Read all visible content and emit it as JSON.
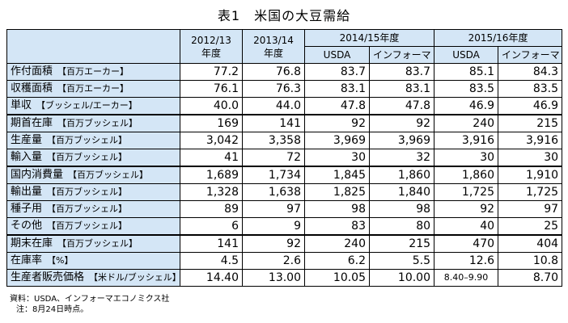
{
  "title": "表1　米国の大豆需給",
  "header": {
    "col_2012": "2012/13\n年度",
    "col_2013": "2013/14\n年度",
    "group_2014": "2014/15年度",
    "group_2015": "2015/16年度",
    "sub": [
      "USDA",
      "インフォーマ",
      "USDA",
      "インフォーマ"
    ]
  },
  "rows": [
    {
      "label": "作付面積",
      "unit": "【百万エーカー】",
      "values": [
        "77.2",
        "76.8",
        "83.7",
        "83.7",
        "85.1",
        "84.3"
      ]
    },
    {
      "label": "収穫面積",
      "unit": "【百万エーカー】",
      "values": [
        "76.1",
        "76.3",
        "83.1",
        "83.1",
        "83.5",
        "83.5"
      ]
    },
    {
      "label": "単収",
      "unit": "【ブッシェル/エーカー】",
      "values": [
        "40.0",
        "44.0",
        "47.8",
        "47.8",
        "46.9",
        "46.9"
      ]
    },
    {
      "label": "期首在庫",
      "unit": "【百万ブッシェル】",
      "values": [
        "169",
        "141",
        "92",
        "92",
        "240",
        "215"
      ]
    },
    {
      "label": "生産量",
      "unit": "【百万ブッシェル】",
      "values": [
        "3,042",
        "3,358",
        "3,969",
        "3,969",
        "3,916",
        "3,916"
      ]
    },
    {
      "label": "輸入量",
      "unit": "【百万ブッシェル】",
      "values": [
        "41",
        "72",
        "30",
        "32",
        "30",
        "30"
      ]
    },
    {
      "label": "国内消費量",
      "unit": "【百万ブッシェル】",
      "values": [
        "1,689",
        "1,734",
        "1,845",
        "1,860",
        "1,860",
        "1,910"
      ]
    },
    {
      "label": "輸出量",
      "unit": "【百万ブッシェル】",
      "values": [
        "1,328",
        "1,638",
        "1,825",
        "1,840",
        "1,725",
        "1,725"
      ]
    },
    {
      "label": "種子用",
      "unit": "【百万ブッシェル】",
      "values": [
        "89",
        "97",
        "98",
        "98",
        "92",
        "97"
      ]
    },
    {
      "label": "その他",
      "unit": "【百万ブッシェル】",
      "values": [
        "6",
        "9",
        "83",
        "80",
        "40",
        "25"
      ]
    },
    {
      "label": "期末在庫",
      "unit": "【百万ブッシェル】",
      "values": [
        "141",
        "92",
        "240",
        "215",
        "470",
        "404"
      ]
    },
    {
      "label": "在庫率",
      "unit": "【%】",
      "values": [
        "4.5",
        "2.6",
        "6.2",
        "5.5",
        "12.6",
        "10.8"
      ]
    },
    {
      "label": "生産者販売価格",
      "unit": "【米ドル/ブッシェル】",
      "values": [
        "14.40",
        "13.00",
        "10.05",
        "10.00",
        "8.40–9.90",
        "8.70"
      ]
    }
  ],
  "notes": {
    "source": "資料：USDA、インフォーマエコノミクス社",
    "note": "注：8月24日時点。"
  }
}
